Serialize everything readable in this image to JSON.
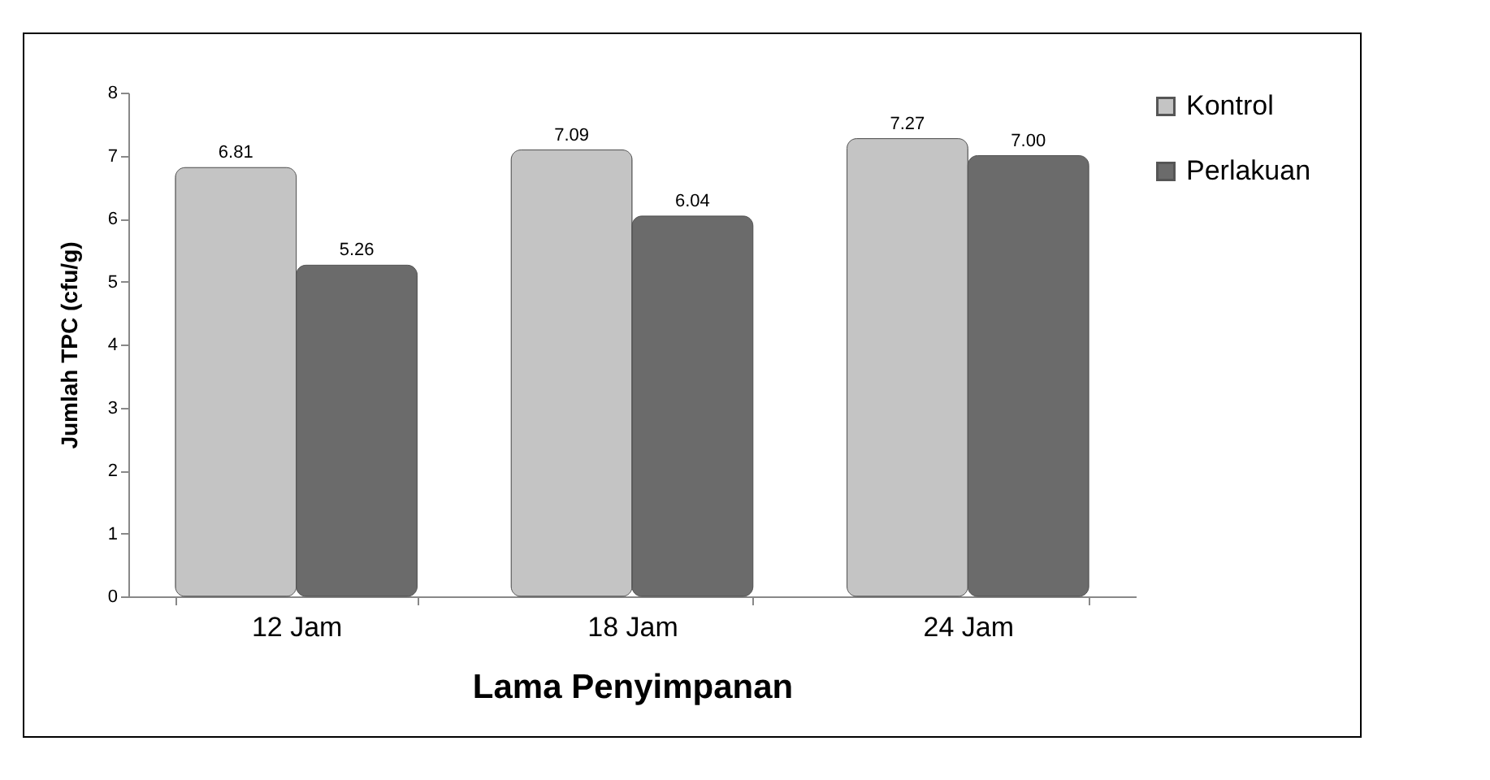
{
  "chart_data": {
    "type": "bar",
    "xlabel": "Lama Penyimpanan",
    "ylabel": "Jumlah TPC (cfu/g)",
    "categories": [
      "12 Jam",
      "18 Jam",
      "24 Jam"
    ],
    "series": [
      {
        "name": "Kontrol",
        "color": "#c4c4c4",
        "values": [
          6.81,
          7.09,
          7.27
        ],
        "value_labels": [
          "6.81",
          "7.09",
          "7.27"
        ]
      },
      {
        "name": "Perlakuan",
        "color": "#6b6b6b",
        "values": [
          5.26,
          6.04,
          7.0
        ],
        "value_labels": [
          "5.26",
          "6.04",
          "7.00"
        ]
      }
    ],
    "ylim": [
      0,
      8
    ],
    "yticks": [
      0,
      1,
      2,
      3,
      4,
      5,
      6,
      7,
      8
    ],
    "grid": false,
    "legend": "right"
  }
}
